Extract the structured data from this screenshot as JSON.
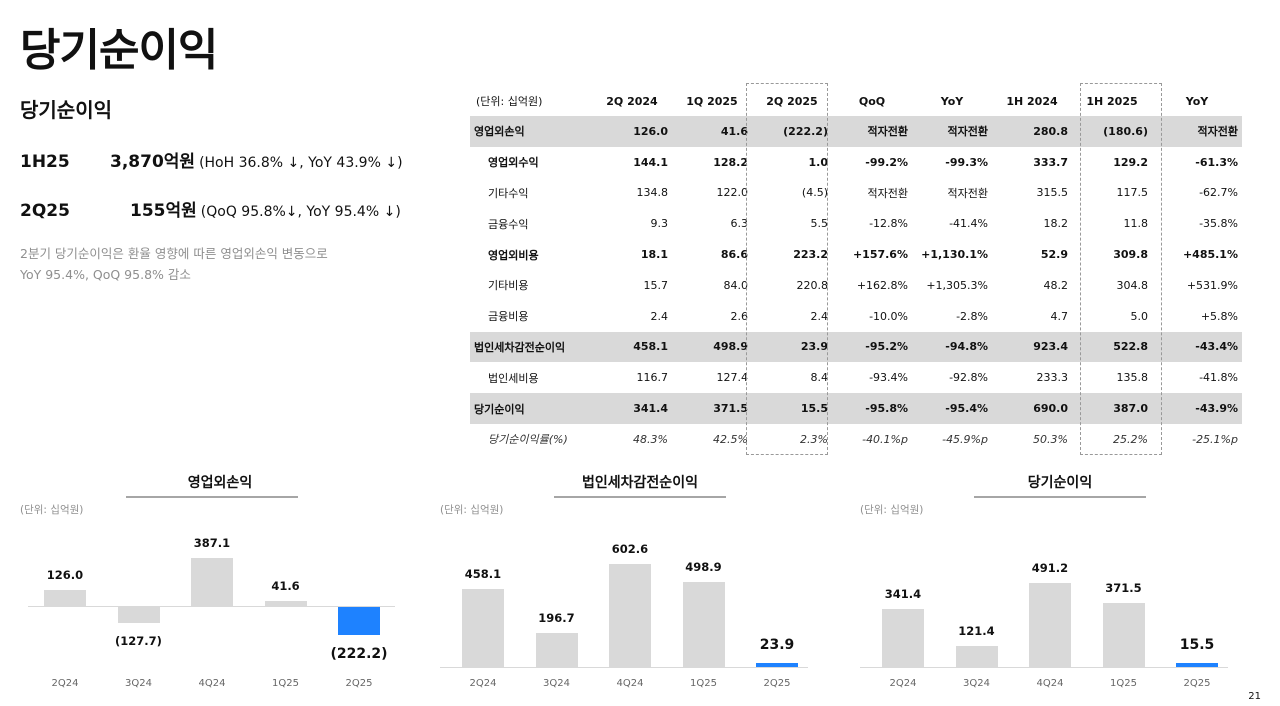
{
  "page": {
    "title": "당기순이익",
    "page_number": "21"
  },
  "summary": {
    "sub_title": "당기순이익",
    "rows": [
      {
        "period": "1H25",
        "amount": "3,870억원",
        "change": "(HoH 36.8% ↓, YoY 43.9% ↓)"
      },
      {
        "period": "2Q25",
        "amount": "155억원",
        "change": "(QoQ 95.8%↓, YoY 95.4% ↓)"
      }
    ],
    "note_line1": "2분기 당기순이익은 환율 영향에 따른 영업외손익 변동으로",
    "note_line2": "YoY 95.4%, QoQ 95.8% 감소"
  },
  "table": {
    "unit": "(단위: 십억원)",
    "headers": [
      "2Q 2024",
      "1Q 2025",
      "2Q 2025",
      "QoQ",
      "YoY",
      "1H 2024",
      "1H 2025",
      "YoY"
    ],
    "rows": [
      {
        "label": "영업외손익",
        "style": "hl",
        "values": [
          "126.0",
          "41.6",
          "(222.2)",
          "적자전환",
          "적자전환",
          "280.8",
          "(180.6)",
          "적자전환"
        ]
      },
      {
        "label": "영업외수익",
        "style": "bold",
        "values": [
          "144.1",
          "128.2",
          "1.0",
          "-99.2%",
          "-99.3%",
          "333.7",
          "129.2",
          "-61.3%"
        ]
      },
      {
        "label": "기타수익",
        "style": "",
        "values": [
          "134.8",
          "122.0",
          "(4.5)",
          "적자전환",
          "적자전환",
          "315.5",
          "117.5",
          "-62.7%"
        ]
      },
      {
        "label": "금융수익",
        "style": "",
        "values": [
          "9.3",
          "6.3",
          "5.5",
          "-12.8%",
          "-41.4%",
          "18.2",
          "11.8",
          "-35.8%"
        ]
      },
      {
        "label": "영업외비용",
        "style": "bold",
        "values": [
          "18.1",
          "86.6",
          "223.2",
          "+157.6%",
          "+1,130.1%",
          "52.9",
          "309.8",
          "+485.1%"
        ]
      },
      {
        "label": "기타비용",
        "style": "",
        "values": [
          "15.7",
          "84.0",
          "220.8",
          "+162.8%",
          "+1,305.3%",
          "48.2",
          "304.8",
          "+531.9%"
        ]
      },
      {
        "label": "금융비용",
        "style": "",
        "values": [
          "2.4",
          "2.6",
          "2.4",
          "-10.0%",
          "-2.8%",
          "4.7",
          "5.0",
          "+5.8%"
        ]
      },
      {
        "label": "법인세차감전순이익",
        "style": "hl",
        "values": [
          "458.1",
          "498.9",
          "23.9",
          "-95.2%",
          "-94.8%",
          "923.4",
          "522.8",
          "-43.4%"
        ]
      },
      {
        "label": "법인세비용",
        "style": "",
        "values": [
          "116.7",
          "127.4",
          "8.4",
          "-93.4%",
          "-92.8%",
          "233.3",
          "135.8",
          "-41.8%"
        ]
      },
      {
        "label": "당기순이익",
        "style": "hl",
        "values": [
          "341.4",
          "371.5",
          "15.5",
          "-95.8%",
          "-95.4%",
          "690.0",
          "387.0",
          "-43.9%"
        ]
      },
      {
        "label": "당기순이익률(%)",
        "style": "italic",
        "values": [
          "48.3%",
          "42.5%",
          "2.3%",
          "-40.1%p",
          "-45.9%p",
          "50.3%",
          "25.2%",
          "-25.1%p"
        ]
      }
    ]
  },
  "colors": {
    "highlight_bar": "#1e82ff",
    "bar": "#d9d9d9",
    "row_highlight": "#d9d9d9"
  },
  "chart_data": [
    {
      "type": "bar",
      "title": "영업외손익",
      "unit": "(단위: 십억원)",
      "categories": [
        "2Q24",
        "3Q24",
        "4Q24",
        "1Q25",
        "2Q25"
      ],
      "values": [
        126.0,
        -127.7,
        387.1,
        41.6,
        -222.2
      ],
      "labels": [
        "126.0",
        "(127.7)",
        "387.1",
        "41.6",
        "(222.2)"
      ],
      "highlight_index": 4,
      "xlabel": "",
      "ylabel": "",
      "grid": false
    },
    {
      "type": "bar",
      "title": "법인세차감전순이익",
      "unit": "(단위: 십억원)",
      "categories": [
        "2Q24",
        "3Q24",
        "4Q24",
        "1Q25",
        "2Q25"
      ],
      "values": [
        458.1,
        196.7,
        602.6,
        498.9,
        23.9
      ],
      "labels": [
        "458.1",
        "196.7",
        "602.6",
        "498.9",
        "23.9"
      ],
      "highlight_index": 4,
      "xlabel": "",
      "ylabel": "",
      "grid": false
    },
    {
      "type": "bar",
      "title": "당기순이익",
      "unit": "(단위: 십억원)",
      "categories": [
        "2Q24",
        "3Q24",
        "4Q24",
        "1Q25",
        "2Q25"
      ],
      "values": [
        341.4,
        121.4,
        491.2,
        371.5,
        15.5
      ],
      "labels": [
        "341.4",
        "121.4",
        "491.2",
        "371.5",
        "15.5"
      ],
      "highlight_index": 4,
      "xlabel": "",
      "ylabel": "",
      "grid": false
    }
  ]
}
